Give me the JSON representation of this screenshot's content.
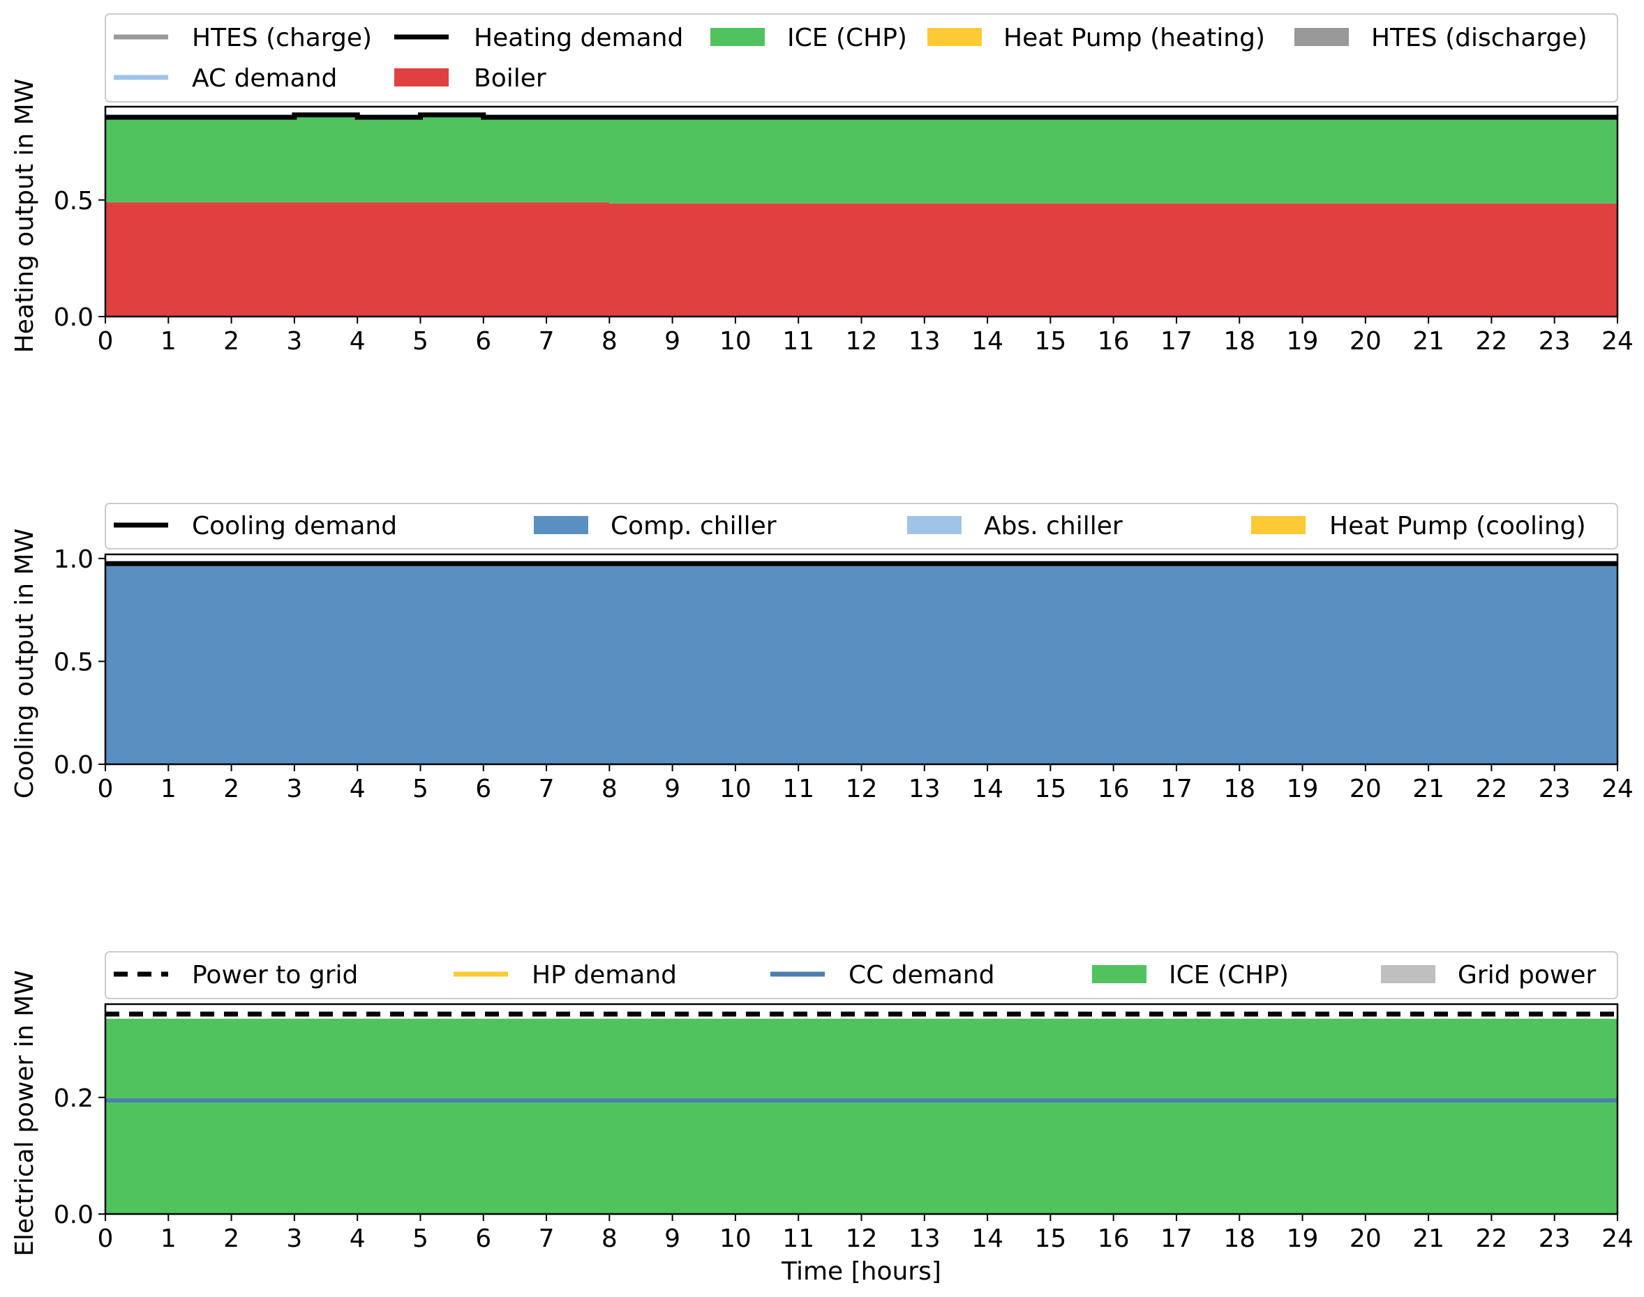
{
  "chart_data": [
    {
      "type": "area",
      "ylabel": "Heating output in MW",
      "xlabel": "",
      "xlim": [
        0,
        24
      ],
      "ylim": [
        0,
        0.9
      ],
      "yticks": [
        "0.0",
        "0.5"
      ],
      "ytick_values": [
        0,
        0.5
      ],
      "x": [
        0,
        1,
        2,
        3,
        4,
        5,
        6,
        7,
        8,
        9,
        10,
        11,
        12,
        13,
        14,
        15,
        16,
        17,
        18,
        19,
        20,
        21,
        22,
        23,
        24
      ],
      "legend": {
        "rows": [
          [
            {
              "label": "HTES (charge)",
              "kind": "line",
              "color": "#999999"
            },
            {
              "label": "Heating demand",
              "kind": "line",
              "color": "#000000"
            },
            {
              "label": "ICE (CHP)",
              "kind": "patch",
              "color": "#50c35e"
            },
            {
              "label": "Heat Pump (heating)",
              "kind": "patch",
              "color": "#fdc934"
            },
            {
              "label": "HTES (discharge)",
              "kind": "patch",
              "color": "#999999"
            }
          ],
          [
            {
              "label": "AC demand",
              "kind": "line",
              "color": "#a0c4e8"
            },
            {
              "label": "Boiler",
              "kind": "patch",
              "color": "#e04040"
            }
          ]
        ]
      },
      "stacks": [
        {
          "name": "Boiler",
          "color": "#e04040",
          "values": [
            0.49,
            0.49,
            0.49,
            0.49,
            0.49,
            0.49,
            0.49,
            0.49,
            0.485,
            0.485,
            0.485,
            0.485,
            0.485,
            0.485,
            0.485,
            0.485,
            0.485,
            0.485,
            0.485,
            0.485,
            0.485,
            0.485,
            0.485,
            0.485
          ]
        },
        {
          "name": "ICE (CHP)",
          "color": "#50c35e",
          "values": [
            0.365,
            0.365,
            0.365,
            0.375,
            0.365,
            0.375,
            0.365,
            0.365,
            0.37,
            0.37,
            0.37,
            0.37,
            0.37,
            0.37,
            0.37,
            0.37,
            0.37,
            0.37,
            0.37,
            0.37,
            0.37,
            0.37,
            0.37,
            0.37
          ]
        }
      ],
      "lines": [
        {
          "name": "Heating demand",
          "color": "#000000",
          "width": 7,
          "values": [
            0.855,
            0.855,
            0.855,
            0.865,
            0.855,
            0.865,
            0.855,
            0.855,
            0.855,
            0.855,
            0.855,
            0.855,
            0.855,
            0.855,
            0.855,
            0.855,
            0.855,
            0.855,
            0.855,
            0.855,
            0.855,
            0.855,
            0.855,
            0.855
          ]
        }
      ]
    },
    {
      "type": "area",
      "ylabel": "Cooling output in MW",
      "xlabel": "",
      "xlim": [
        0,
        24
      ],
      "ylim": [
        0,
        1.02
      ],
      "yticks": [
        "0.0",
        "0.5",
        "1.0"
      ],
      "ytick_values": [
        0,
        0.5,
        1.0
      ],
      "x": [
        0,
        1,
        2,
        3,
        4,
        5,
        6,
        7,
        8,
        9,
        10,
        11,
        12,
        13,
        14,
        15,
        16,
        17,
        18,
        19,
        20,
        21,
        22,
        23,
        24
      ],
      "legend": {
        "rows": [
          [
            {
              "label": "Cooling demand",
              "kind": "line",
              "color": "#000000"
            },
            {
              "label": "Comp. chiller",
              "kind": "patch",
              "color": "#5a8fc2"
            },
            {
              "label": "Abs. chiller",
              "kind": "patch",
              "color": "#a0c4e8"
            },
            {
              "label": "Heat Pump (cooling)",
              "kind": "patch",
              "color": "#fdc934"
            }
          ]
        ]
      },
      "stacks": [
        {
          "name": "Comp. chiller",
          "color": "#5a8fc2",
          "values": [
            0.97,
            0.97,
            0.97,
            0.97,
            0.97,
            0.97,
            0.97,
            0.97,
            0.97,
            0.97,
            0.97,
            0.97,
            0.97,
            0.97,
            0.97,
            0.97,
            0.97,
            0.97,
            0.97,
            0.97,
            0.97,
            0.97,
            0.97,
            0.97
          ]
        }
      ],
      "lines": [
        {
          "name": "Cooling demand",
          "color": "#000000",
          "width": 7,
          "values": [
            0.975,
            0.975,
            0.975,
            0.975,
            0.975,
            0.975,
            0.975,
            0.975,
            0.975,
            0.975,
            0.975,
            0.975,
            0.975,
            0.975,
            0.975,
            0.975,
            0.975,
            0.975,
            0.975,
            0.975,
            0.975,
            0.975,
            0.975,
            0.975
          ]
        }
      ]
    },
    {
      "type": "area",
      "ylabel": "Electrical power in MW",
      "xlabel": "Time [hours]",
      "xlim": [
        0,
        24
      ],
      "ylim": [
        0,
        0.36
      ],
      "yticks": [
        "0.0",
        "0.2"
      ],
      "ytick_values": [
        0,
        0.2
      ],
      "x": [
        0,
        1,
        2,
        3,
        4,
        5,
        6,
        7,
        8,
        9,
        10,
        11,
        12,
        13,
        14,
        15,
        16,
        17,
        18,
        19,
        20,
        21,
        22,
        23,
        24
      ],
      "legend": {
        "rows": [
          [
            {
              "label": "Power to grid",
              "kind": "dashed",
              "color": "#000000"
            },
            {
              "label": "HP demand",
              "kind": "line",
              "color": "#fdc934"
            },
            {
              "label": "CC demand",
              "kind": "line",
              "color": "#4a7fb0"
            },
            {
              "label": "ICE (CHP)",
              "kind": "patch",
              "color": "#50c35e"
            },
            {
              "label": "Grid power",
              "kind": "patch",
              "color": "#bfbfbf"
            }
          ]
        ]
      },
      "stacks": [
        {
          "name": "ICE (CHP)",
          "color": "#50c35e",
          "values": [
            0.335,
            0.335,
            0.335,
            0.335,
            0.335,
            0.335,
            0.335,
            0.335,
            0.335,
            0.335,
            0.335,
            0.335,
            0.335,
            0.335,
            0.335,
            0.335,
            0.335,
            0.335,
            0.335,
            0.335,
            0.335,
            0.335,
            0.335,
            0.335
          ]
        }
      ],
      "lines": [
        {
          "name": "CC demand",
          "color": "#4a7fb0",
          "width": 6,
          "values": [
            0.195,
            0.195,
            0.195,
            0.195,
            0.195,
            0.195,
            0.195,
            0.195,
            0.195,
            0.195,
            0.195,
            0.195,
            0.195,
            0.195,
            0.195,
            0.195,
            0.195,
            0.195,
            0.195,
            0.195,
            0.195,
            0.195,
            0.195,
            0.195
          ]
        },
        {
          "name": "Power to grid",
          "color": "#000000",
          "width": 7,
          "dashed": true,
          "values": [
            0.343,
            0.343,
            0.343,
            0.343,
            0.343,
            0.343,
            0.343,
            0.343,
            0.343,
            0.343,
            0.343,
            0.343,
            0.343,
            0.343,
            0.343,
            0.343,
            0.343,
            0.343,
            0.343,
            0.343,
            0.343,
            0.343,
            0.343,
            0.343
          ]
        }
      ]
    }
  ]
}
